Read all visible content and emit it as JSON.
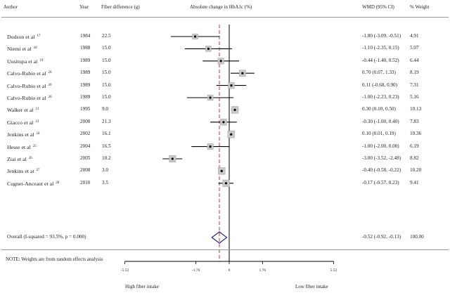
{
  "headers": {
    "author": "Author",
    "year": "Year",
    "fiber": "Fiber difference (g)",
    "effect": "Absolute change  in HbA1c (%)",
    "wmd": "WMD (95% CI)",
    "weight": "% Weight"
  },
  "chart_data": {
    "type": "forest",
    "x_axis": {
      "ticks": [
        -5.52,
        -1.76,
        0,
        1.76,
        5.52
      ],
      "tick_labels": [
        "-5.52",
        "-1.76",
        "0",
        "1.76",
        "5.52"
      ],
      "xlim": [
        -5.52,
        5.52
      ]
    },
    "null_line": 0,
    "pooled_reference_line": -0.52,
    "studies": [
      {
        "author": "Dodson et al",
        "ref": "17",
        "year": "1984",
        "fiber": "22.5",
        "wmd": -1.8,
        "lo": -3.09,
        "hi": -0.51,
        "ci_text": "-1.80 (-3.09, -0.51)",
        "weight": "4.91"
      },
      {
        "author": "Niemi et al",
        "ref": "18",
        "year": "1988",
        "fiber": "15.0",
        "wmd": -1.1,
        "lo": -2.35,
        "hi": 0.15,
        "ci_text": "-1.10 (-2.35, 0.15)",
        "weight": "5.07"
      },
      {
        "author": "Uusitupa et al",
        "ref": "19",
        "year": "1989",
        "fiber": "15.0",
        "wmd": -0.44,
        "lo": -1.4,
        "hi": 0.52,
        "ci_text": "-0.44 (-1.40, 0.52)",
        "weight": "6.44"
      },
      {
        "author": "Calvo-Rubio et al",
        "ref": "20",
        "year": "1989",
        "fiber": "15.0",
        "wmd": 0.7,
        "lo": 0.07,
        "hi": 1.33,
        "ci_text": "0.70 (0.07, 1.33)",
        "weight": "8.19"
      },
      {
        "author": "Calvo-Rubio et al",
        "ref": "20",
        "year": "1989",
        "fiber": "15.0",
        "wmd": 0.11,
        "lo": -0.68,
        "hi": 0.9,
        "ci_text": "0.11 (-0.68, 0.90)",
        "weight": "7.31"
      },
      {
        "author": "Calvo-Rubio et al",
        "ref": "20",
        "year": "1989",
        "fiber": "15.0",
        "wmd": -1.0,
        "lo": -2.23,
        "hi": 0.23,
        "ci_text": "-1.00 (-2.23, 0.23)",
        "weight": "5.16"
      },
      {
        "author": "Walker et al",
        "ref": "21",
        "year": "1995",
        "fiber": "9.0",
        "wmd": 0.3,
        "lo": 0.1,
        "hi": 0.5,
        "ci_text": "0.30 (0.10, 0.50)",
        "weight": "10.13"
      },
      {
        "author": "Giacco et al",
        "ref": "23",
        "year": "2000",
        "fiber": "21.3",
        "wmd": -0.3,
        "lo": -1.0,
        "hi": 0.4,
        "ci_text": "-0.30 (-1.00, 0.40)",
        "weight": "7.83"
      },
      {
        "author": "Jenkins et al",
        "ref": "24",
        "year": "2002",
        "fiber": "16.1",
        "wmd": 0.1,
        "lo": 0.01,
        "hi": 0.19,
        "ci_text": "0.10 (0.01, 0.19)",
        "weight": "10.36"
      },
      {
        "author": "Hesse et al",
        "ref": "25",
        "year": "2004",
        "fiber": "16.5",
        "wmd": -1.0,
        "lo": -2.0,
        "hi": 0.0,
        "ci_text": "-1.00 (-2.00, 0.00)",
        "weight": "6.19"
      },
      {
        "author": "Ziai et al",
        "ref": "26",
        "year": "2005",
        "fiber": "10.2",
        "wmd": -3.0,
        "lo": -3.52,
        "hi": -2.48,
        "ci_text": "-3.00 (-3.52, -2.48)",
        "weight": "8.82"
      },
      {
        "author": "Jenkins et at",
        "ref": "27",
        "year": "2008",
        "fiber": "3.0",
        "wmd": -0.4,
        "lo": -0.58,
        "hi": -0.22,
        "ci_text": "-0.40 (-0.58, -0.22)",
        "weight": "10.20"
      },
      {
        "author": "Cugnet-Anceaut et al",
        "ref": "28",
        "year": "2010",
        "fiber": "3.5",
        "wmd": -0.17,
        "lo": -0.57,
        "hi": 0.23,
        "ci_text": "-0.17 (-0.57, 0.23)",
        "weight": "9.41"
      }
    ],
    "overall": {
      "label": "Overall  (I-squared = 93.5%, p = 0.000)",
      "wmd": -0.52,
      "lo": -0.92,
      "hi": -0.13,
      "ci_text": "-0.52 (-0.92, -0.13)",
      "weight": "100.00"
    }
  },
  "note": "NOTE: Weights are from random effects analysis",
  "directions": {
    "left": "High fiber intake",
    "right": "Low fiber intake"
  },
  "colors": {
    "ci_line": "#000000",
    "diamond": "#1f2a7a",
    "ref_line": "#c0392b",
    "rule": "#999999"
  }
}
